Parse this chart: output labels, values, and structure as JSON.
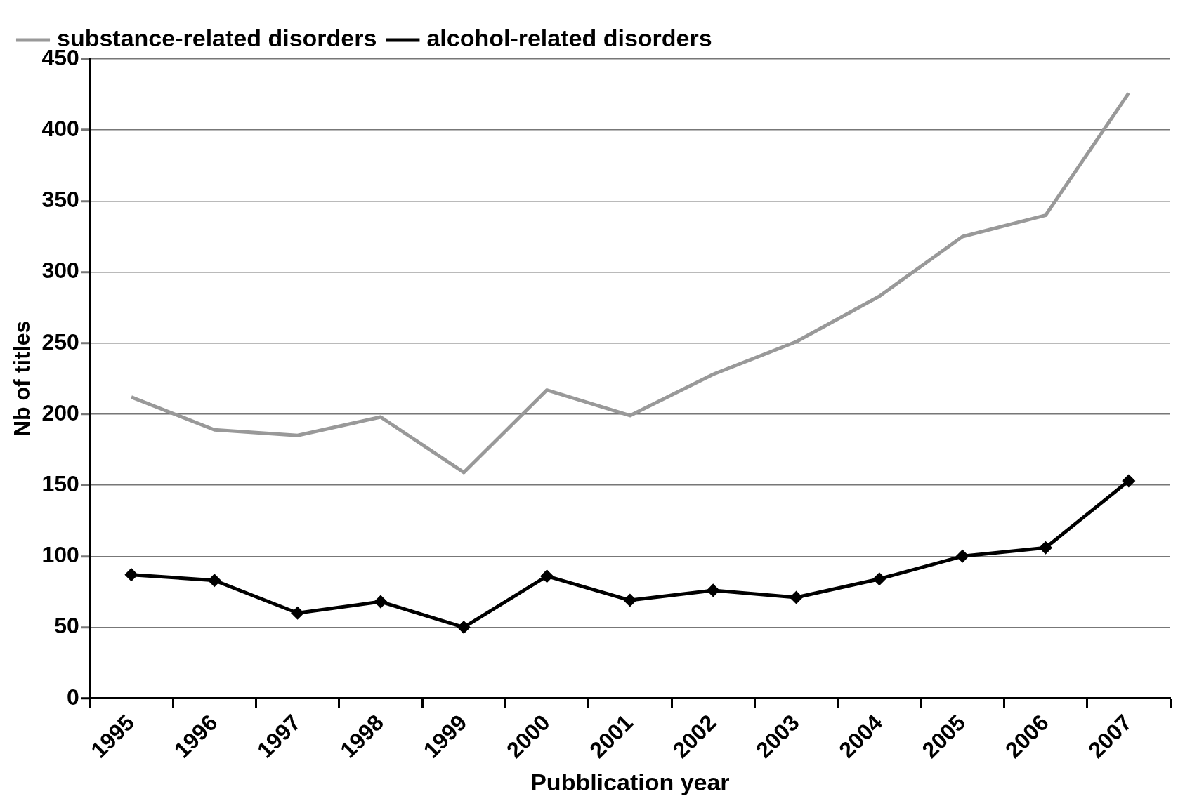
{
  "chart_data": {
    "type": "line",
    "xlabel": "Pubblication year",
    "ylabel": "Nb of titles",
    "categories": [
      "1995",
      "1996",
      "1997",
      "1998",
      "1999",
      "2000",
      "2001",
      "2002",
      "2003",
      "2004",
      "2005",
      "2006",
      "2007"
    ],
    "series": [
      {
        "name": "substance-related disorders",
        "color": "#999999",
        "marker": "none",
        "values": [
          212,
          189,
          185,
          198,
          159,
          217,
          199,
          228,
          251,
          283,
          325,
          340,
          426
        ]
      },
      {
        "name": "alcohol-related disorders",
        "color": "#000000",
        "marker": "diamond",
        "values": [
          87,
          83,
          60,
          68,
          50,
          86,
          69,
          76,
          71,
          84,
          100,
          106,
          153
        ]
      }
    ],
    "ylim": [
      0,
      450
    ],
    "yticks": [
      0,
      50,
      100,
      150,
      200,
      250,
      300,
      350,
      400,
      450
    ],
    "grid": "y",
    "legend": "top left",
    "line_style": "solid"
  }
}
